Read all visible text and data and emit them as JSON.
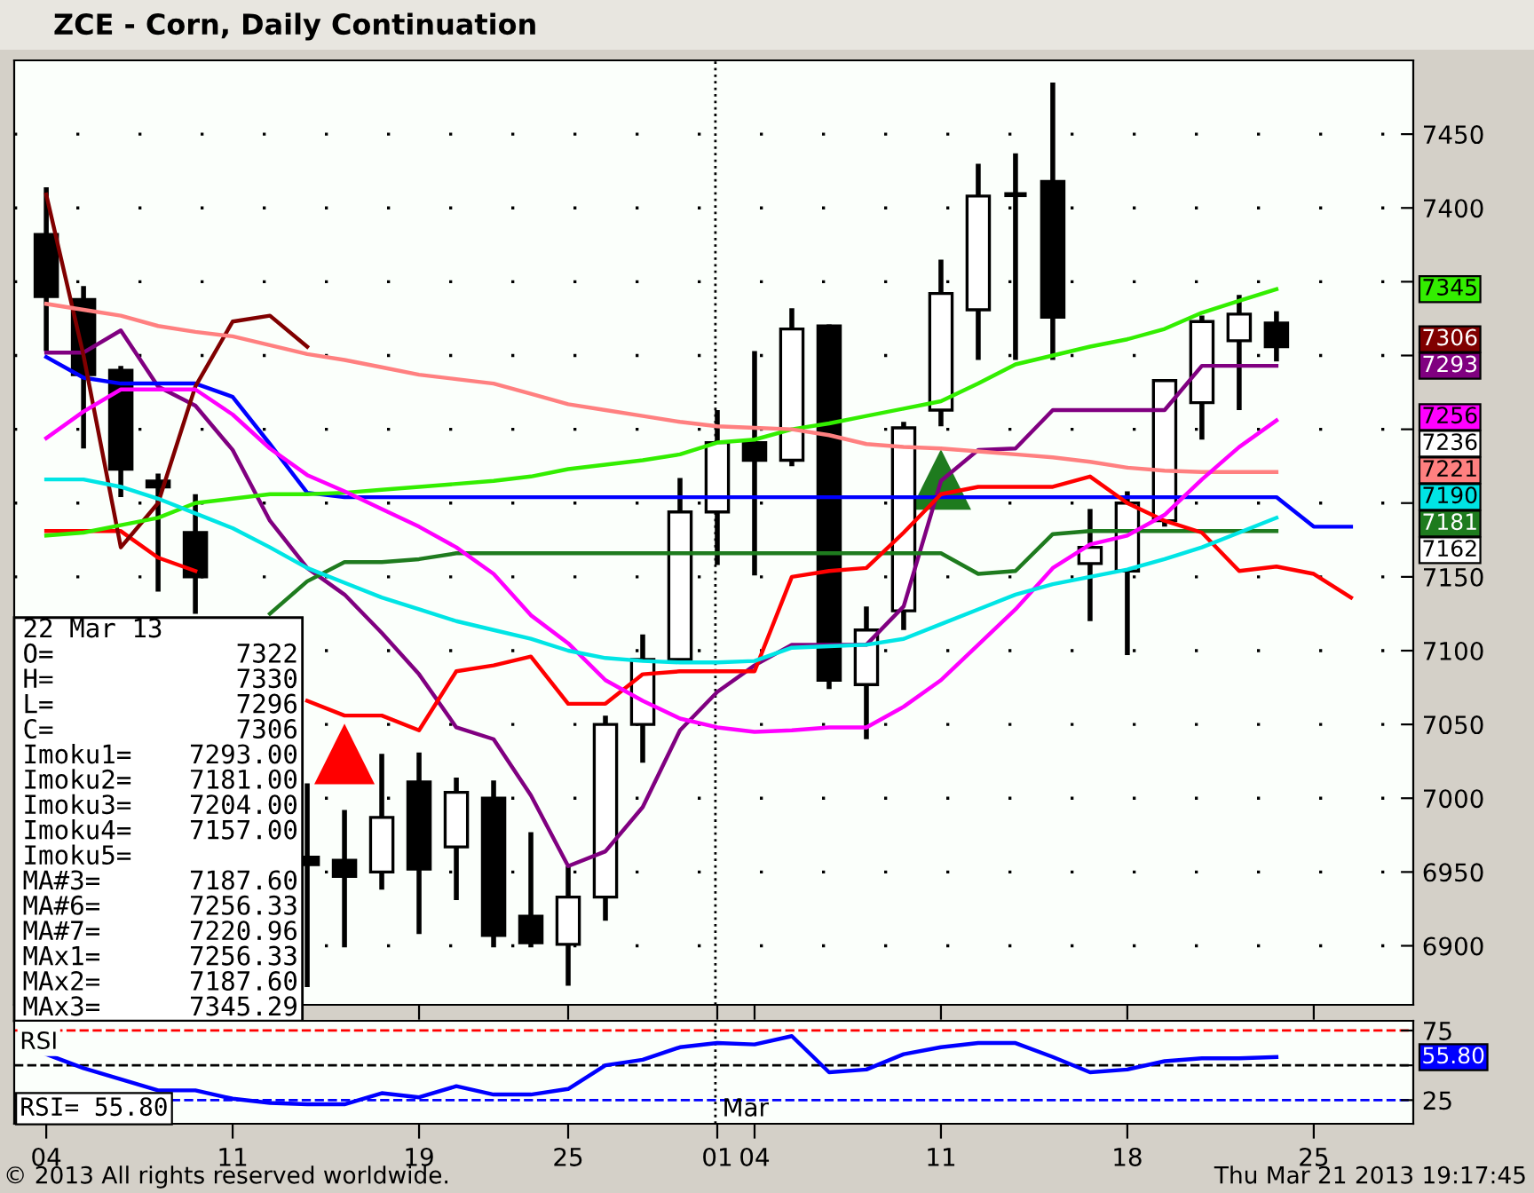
{
  "chart_data": [
    {
      "type": "candlestick",
      "title": "ZCE - Corn, Daily Continuation",
      "color": "#000000",
      "categories": [
        "04",
        null,
        null,
        null,
        null,
        "11",
        null,
        null,
        null,
        null,
        "19",
        null,
        null,
        null,
        "25",
        null,
        null,
        null,
        "01",
        "04",
        null,
        null,
        null,
        null,
        "11",
        null,
        null,
        null,
        null,
        "18",
        null,
        null,
        null,
        null,
        "25",
        null,
        null
      ],
      "ohlc": [
        [
          7382,
          7414,
          7303,
          7340
        ],
        [
          7338,
          7347,
          7237,
          7287
        ],
        [
          7290,
          7293,
          7204,
          7223
        ],
        [
          7215,
          7220,
          7140,
          7211
        ],
        [
          7180,
          7206,
          7125,
          7150
        ],
        null,
        null,
        [
          6960,
          7010,
          6872,
          6955
        ],
        [
          6958,
          6992,
          6899,
          6947
        ],
        [
          6950,
          7030,
          6938,
          6987
        ],
        [
          7011,
          7031,
          6908,
          6952
        ],
        [
          6967,
          7014,
          6931,
          7004
        ],
        [
          7000,
          7012,
          6899,
          6907
        ],
        [
          6920,
          6977,
          6899,
          6902
        ],
        [
          6901,
          6954,
          6873,
          6933
        ],
        [
          6933,
          7056,
          6917,
          7050
        ],
        [
          7050,
          7111,
          7024,
          7094
        ],
        [
          7094,
          7217,
          7093,
          7194
        ],
        [
          7194,
          7263,
          7158,
          7241
        ],
        [
          7241,
          7303,
          7151,
          7229
        ],
        [
          7229,
          7332,
          7225,
          7318
        ],
        [
          7320,
          7321,
          7074,
          7080
        ],
        [
          7077,
          7130,
          7040,
          7114
        ],
        [
          7127,
          7255,
          7114,
          7251
        ],
        [
          7263,
          7365,
          7252,
          7342
        ],
        [
          7331,
          7430,
          7297,
          7408
        ],
        [
          7409,
          7437,
          7297,
          7409
        ],
        [
          7418,
          7485,
          7297,
          7326
        ],
        [
          7159,
          7196,
          7120,
          7170
        ],
        [
          7154,
          7208,
          7097,
          7200
        ],
        [
          7188,
          7284,
          7184,
          7283
        ],
        [
          7268,
          7327,
          7243,
          7323
        ],
        [
          7310,
          7341,
          7263,
          7328
        ],
        [
          7322,
          7330,
          7296,
          7306
        ],
        null,
        null,
        null
      ],
      "series": [
        {
          "type": "line",
          "color": "#800080",
          "values": [
            7302,
            7302,
            7317,
            7279,
            7266,
            7236,
            7188,
            7156,
            7138,
            7112,
            7084,
            7048,
            7040,
            7002,
            6954,
            6964,
            6994,
            7046,
            7072,
            7090,
            7104,
            7104,
            7104,
            7130,
            7215,
            7236,
            7237,
            7263,
            7263,
            7263,
            7263,
            7293,
            7293,
            7293,
            null,
            null,
            null
          ]
        },
        {
          "type": "line",
          "color": "#1e7b1e",
          "values": [
            null,
            null,
            null,
            null,
            null,
            null,
            7125,
            7147,
            7160,
            7160,
            7162,
            7166,
            7166,
            7166,
            7166,
            7166,
            7166,
            7166,
            7166,
            7166,
            7166,
            7166,
            7166,
            7166,
            7166,
            7152,
            7154,
            7179,
            7181,
            7181,
            7181,
            7181,
            7181,
            7181,
            null,
            null,
            null
          ]
        },
        {
          "type": "line",
          "color": "#0000ff",
          "values": [
            7299,
            7285,
            7281,
            7281,
            7281,
            7272,
            7240,
            7207,
            7204,
            7204,
            7204,
            7204,
            7204,
            7204,
            7204,
            7204,
            7204,
            7204,
            7204,
            7204,
            7204,
            7204,
            7204,
            7204,
            7204,
            7204,
            7204,
            7204,
            7204,
            7204,
            7204,
            7204,
            7204,
            7204,
            7184,
            7184,
            null
          ]
        },
        {
          "type": "line",
          "color": "#ff0000",
          "values": [
            7181,
            7181,
            7181,
            7163,
            7154,
            null,
            null,
            7066,
            7056,
            7056,
            7046,
            7086,
            7090,
            7096,
            7064,
            7064,
            7084,
            7086,
            7086,
            7086,
            7150,
            7154,
            7156,
            7180,
            7206,
            7211,
            7211,
            7211,
            7218,
            7200,
            7188,
            7180,
            7154,
            7157,
            7152,
            7136,
            null
          ]
        },
        {
          "type": "line",
          "color": "#800000",
          "values": [
            7409,
            7300,
            7170,
            7200,
            7279,
            7323,
            7327,
            7306,
            null,
            null,
            null,
            null,
            null,
            null,
            null,
            null,
            null,
            null,
            null,
            null,
            null,
            null,
            null,
            null,
            null,
            null,
            null,
            null,
            null,
            null,
            null,
            null,
            null,
            null,
            null,
            null,
            null
          ]
        },
        {
          "type": "line",
          "color": "#33ee00",
          "values": [
            7178,
            7180,
            7185,
            7190,
            7200,
            7203,
            7206,
            7206,
            7207,
            7209,
            7211,
            7213,
            7215,
            7218,
            7223,
            7226,
            7229,
            7233,
            7241,
            7243,
            7250,
            7254,
            7259,
            7264,
            7269,
            7281,
            7294,
            7300,
            7306,
            7311,
            7318,
            7329,
            7337,
            7345,
            null,
            null,
            null
          ]
        },
        {
          "type": "line",
          "color": "#ff8080",
          "values": [
            7335,
            7331,
            7327,
            7320,
            7316,
            7313,
            7307,
            7301,
            7297,
            7292,
            7287,
            7284,
            7281,
            7274,
            7267,
            7263,
            7259,
            7255,
            7252,
            7251,
            7250,
            7246,
            7240,
            7238,
            7237,
            7235,
            7233,
            7231,
            7228,
            7224,
            7222,
            7221,
            7221,
            7221,
            null,
            null,
            null
          ]
        },
        {
          "type": "line",
          "color": "#ff00ff",
          "values": [
            7244,
            7262,
            7277,
            7277,
            7277,
            7260,
            7237,
            7219,
            7208,
            7196,
            7184,
            7170,
            7152,
            7124,
            7105,
            7080,
            7066,
            7054,
            7048,
            7045,
            7046,
            7048,
            7048,
            7062,
            7080,
            7104,
            7128,
            7156,
            7172,
            7178,
            7192,
            7216,
            7238,
            7256,
            null,
            null,
            null
          ]
        },
        {
          "type": "line",
          "color": "#00e5e5",
          "values": [
            7216,
            7216,
            7211,
            7203,
            7193,
            7183,
            7170,
            7156,
            7146,
            7136,
            7128,
            7120,
            7114,
            7108,
            7100,
            7095,
            7093,
            7092,
            7092,
            7093,
            7102,
            7103,
            7104,
            7108,
            7118,
            7128,
            7138,
            7145,
            7150,
            7155,
            7162,
            7170,
            7180,
            7190,
            null,
            null,
            null
          ]
        },
        {
          "type": "scatter",
          "color": "#ff0000",
          "marker": "triangle",
          "values": [
            null,
            null,
            null,
            null,
            null,
            null,
            null,
            null,
            7030,
            null,
            null,
            null,
            null,
            null,
            null,
            null,
            null,
            null,
            null,
            null,
            null,
            null,
            null,
            null,
            null,
            null,
            null,
            null,
            null,
            null,
            null,
            null,
            null,
            null,
            null,
            null,
            null
          ]
        },
        {
          "type": "scatter",
          "color": "#1e7b1e",
          "marker": "triangle",
          "values": [
            null,
            null,
            null,
            null,
            null,
            null,
            null,
            null,
            null,
            null,
            null,
            null,
            null,
            null,
            null,
            null,
            null,
            null,
            null,
            null,
            null,
            null,
            null,
            null,
            7216,
            null,
            null,
            null,
            null,
            null,
            null,
            null,
            null,
            null,
            null,
            null,
            null
          ]
        }
      ],
      "ylim": [
        6860,
        7500
      ],
      "yticks": [
        6900,
        6950,
        7000,
        7050,
        7100,
        7150,
        {
          "value": 7200,
          "label": null
        },
        {
          "value": 7250,
          "label": null
        },
        {
          "value": 7300,
          "label": null
        },
        {
          "value": 7350,
          "label": null
        },
        7400,
        7450
      ],
      "grid": "y",
      "tick_labels": "y",
      "ref_lines": [
        {
          "axis": "x",
          "value": "01",
          "color": "#000000",
          "line_style": "dotted"
        }
      ],
      "annotations": [
        "22 Mar 13",
        "O=7322",
        "H=7330",
        "L=7296",
        "C=7306",
        "Imoku1=7293.00",
        "Imoku2=7181.00",
        "Imoku3=7204.00",
        "Imoku4=7157.00",
        "Imoku5=",
        "MA#3=7187.60",
        "MA#6=7256.33",
        "MA#7=7220.96",
        "MAx1=7256.33",
        "MAx2=7187.60",
        "MAx3=7345.29",
        "7345",
        "7306",
        "7293",
        "7256",
        "7236",
        "7221",
        "7190",
        "7181",
        "7162"
      ]
    },
    {
      "type": "line",
      "categories": [
        "04",
        null,
        null,
        null,
        null,
        "11",
        null,
        null,
        null,
        null,
        "19",
        null,
        null,
        null,
        "25",
        null,
        null,
        null,
        "01",
        "04",
        null,
        null,
        null,
        null,
        "11",
        null,
        null,
        null,
        null,
        "18",
        null,
        null,
        null,
        null,
        "25",
        null,
        null
      ],
      "series": [
        {
          "color": "#0000ff",
          "values": [
            58,
            48,
            40,
            32,
            32,
            26,
            23,
            22,
            22,
            30,
            27,
            35,
            29,
            29,
            33,
            50,
            54,
            63,
            66,
            65,
            71,
            45,
            47,
            58,
            63,
            66,
            66,
            56,
            45,
            47,
            53,
            55,
            55,
            56,
            null,
            null,
            null
          ]
        }
      ],
      "ylim": [
        8,
        82
      ],
      "yticks": [
        25,
        {
          "value": 50,
          "label": null
        },
        75
      ],
      "ref_lines": [
        {
          "axis": "y",
          "value": 75,
          "color": "#ff0000",
          "line_style": "dashed"
        },
        {
          "axis": "y",
          "value": 50,
          "color": "#000000",
          "line_style": "dashed"
        },
        {
          "axis": "y",
          "value": 25,
          "color": "#0000ff",
          "line_style": "dashed"
        },
        {
          "axis": "x",
          "value": "01",
          "color": "#000000",
          "line_style": "dotted"
        }
      ],
      "annotations": [
        "RSI",
        "RSI= 55.80",
        "55.80",
        "Mar",
        "© 2013 All rights reserved worldwide.",
        "Thu Mar 21 2013 19:17:45"
      ]
    }
  ]
}
